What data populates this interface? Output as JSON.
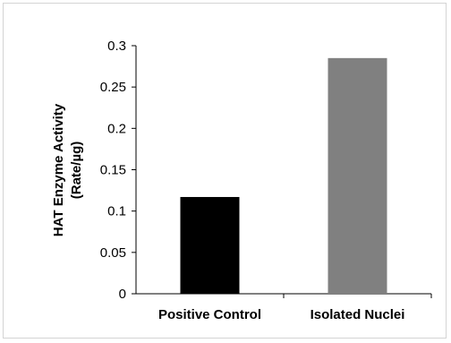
{
  "chart_data": {
    "type": "bar",
    "categories": [
      "Positive Control",
      "Isolated Nuclei"
    ],
    "values": [
      0.117,
      0.285
    ],
    "bar_colors": [
      "#000000",
      "#808080"
    ],
    "ylabel_line1": "HAT Enzyme Activity",
    "ylabel_line2": "(Rate/µg)",
    "ylim": [
      0,
      0.3
    ],
    "yticks": [
      0,
      0.05,
      0.1,
      0.15,
      0.2,
      0.25,
      0.3
    ],
    "ytick_labels": [
      "0",
      "0.05",
      "0.1",
      "0.15",
      "0.2",
      "0.25",
      "0.3"
    ],
    "grid": false,
    "legend": false
  }
}
